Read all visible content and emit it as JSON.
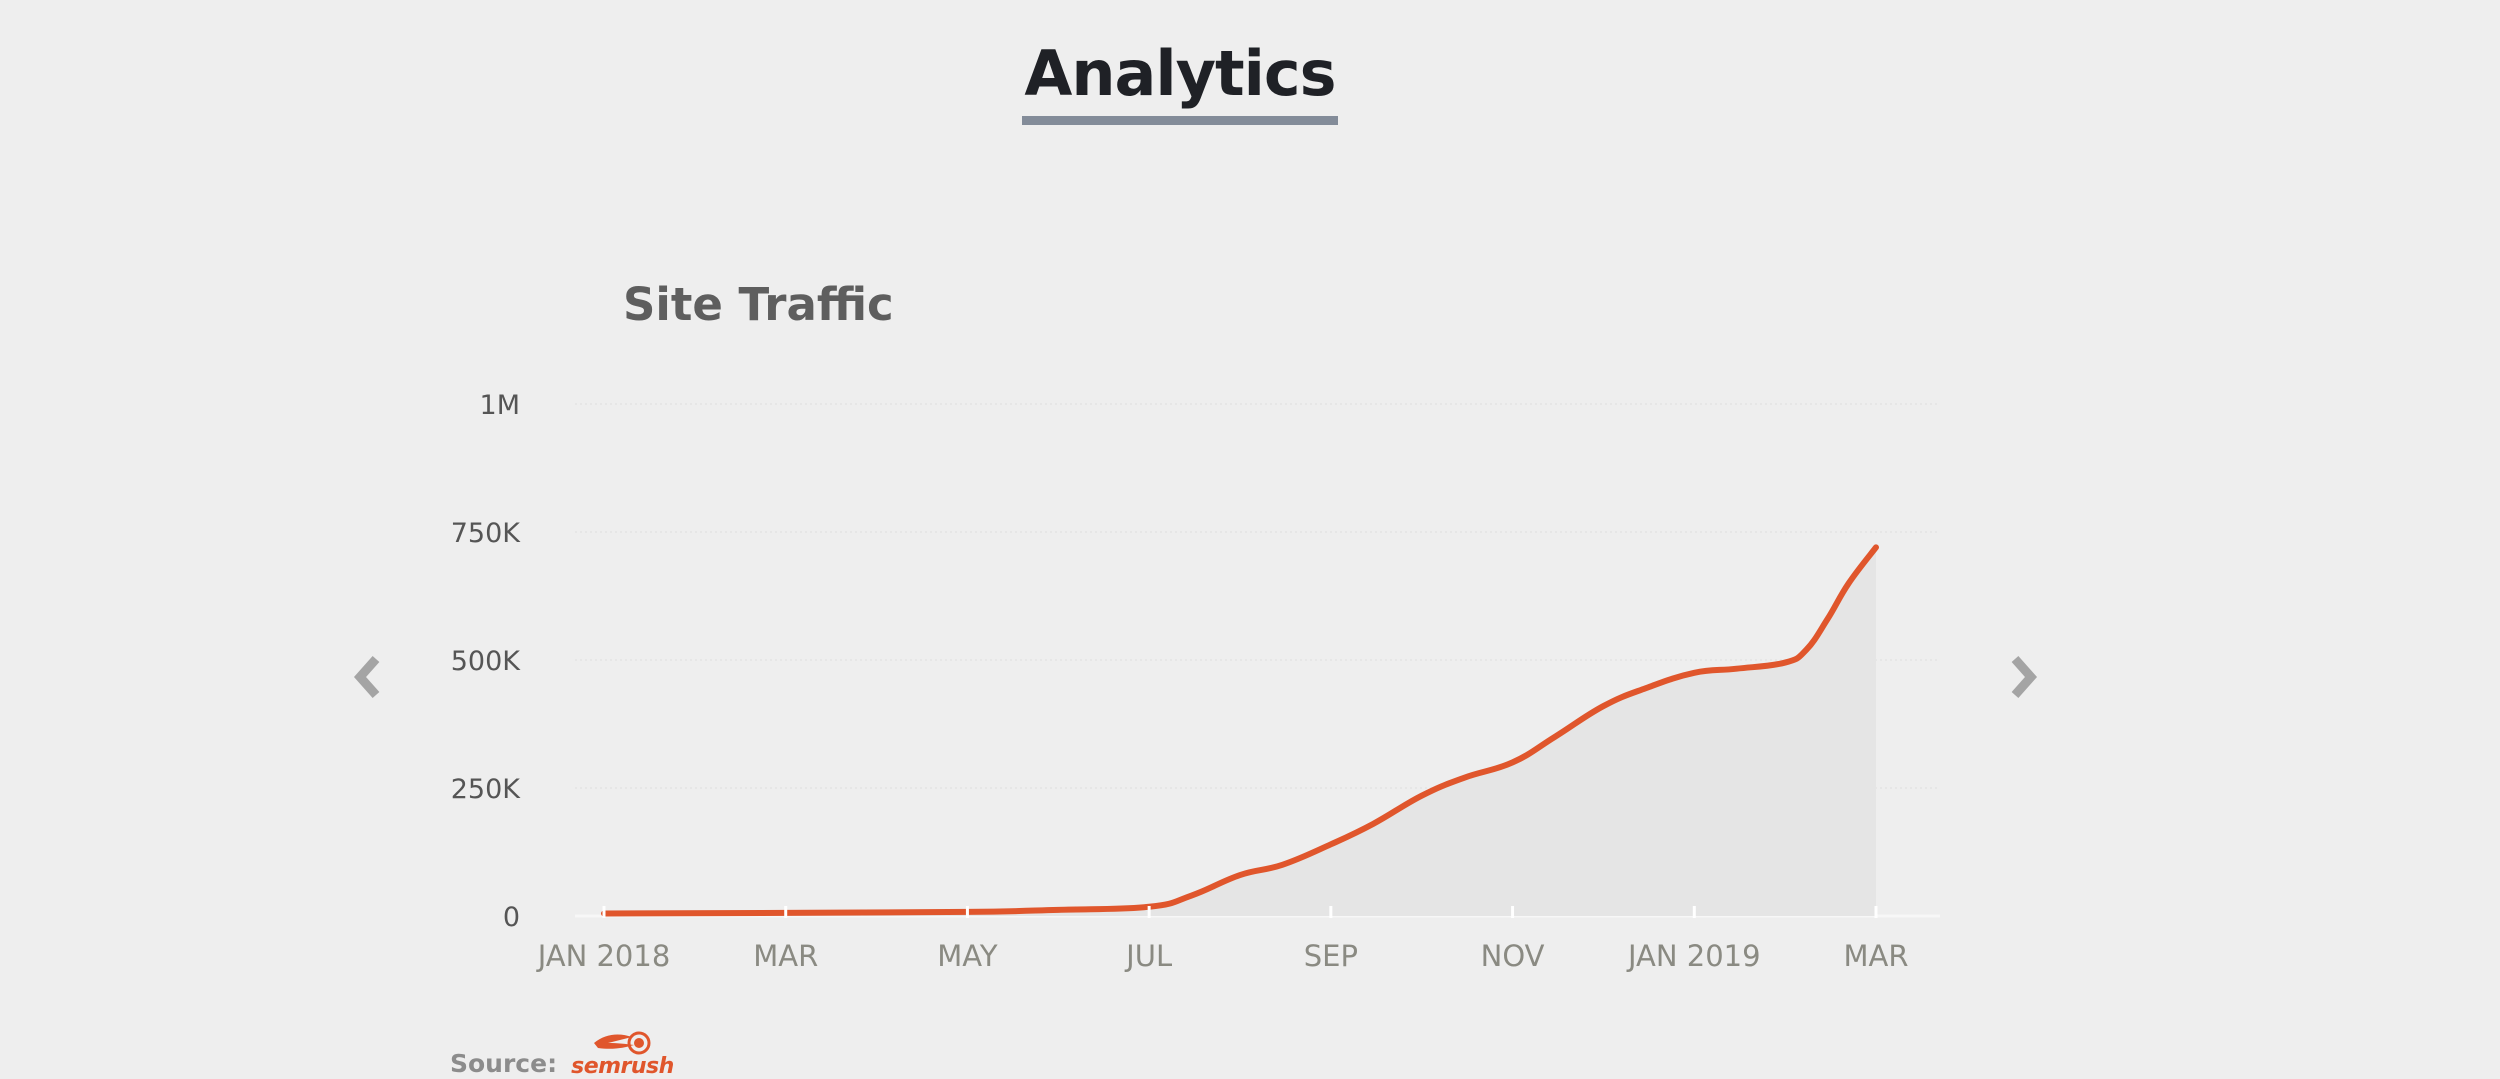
{
  "header": {
    "title": "Analytics"
  },
  "carousel": {
    "prev_icon": "chevron-left-icon",
    "next_icon": "chevron-right-icon"
  },
  "source": {
    "label": "Source:",
    "logo_text": "semrush"
  },
  "colors": {
    "line": "#e0562c",
    "area": "#e5e5e5",
    "background": "#eeeeee",
    "title_underline": "#838c99"
  },
  "chart_data": {
    "type": "area",
    "title": "Site Traffic",
    "xlabel": "",
    "ylabel": "",
    "y_ticks": [
      0,
      250000,
      500000,
      750000,
      1000000
    ],
    "y_tick_labels": [
      "0",
      "250K",
      "500K",
      "750K",
      "1M"
    ],
    "ylim": [
      0,
      1000000
    ],
    "x_ticks": [
      "2018-01",
      "2018-03",
      "2018-05",
      "2018-07",
      "2018-09",
      "2018-11",
      "2019-01",
      "2019-03"
    ],
    "x_tick_labels": [
      "JAN 2018",
      "MAR",
      "MAY",
      "JUL",
      "SEP",
      "NOV",
      "JAN 2019",
      "MAR"
    ],
    "grid": true,
    "series": [
      {
        "values": [
          {
            "x": "2018-01-01",
            "y": 5000
          },
          {
            "x": "2018-03-01",
            "y": 6000
          },
          {
            "x": "2018-05-01",
            "y": 8000
          },
          {
            "x": "2018-06-01",
            "y": 12000
          },
          {
            "x": "2018-07-01",
            "y": 18000
          },
          {
            "x": "2018-07-15",
            "y": 40000
          },
          {
            "x": "2018-08-01",
            "y": 80000
          },
          {
            "x": "2018-08-15",
            "y": 100000
          },
          {
            "x": "2018-09-01",
            "y": 140000
          },
          {
            "x": "2018-09-15",
            "y": 180000
          },
          {
            "x": "2018-10-01",
            "y": 235000
          },
          {
            "x": "2018-10-15",
            "y": 270000
          },
          {
            "x": "2018-11-01",
            "y": 300000
          },
          {
            "x": "2018-11-15",
            "y": 350000
          },
          {
            "x": "2018-12-01",
            "y": 410000
          },
          {
            "x": "2018-12-15",
            "y": 445000
          },
          {
            "x": "2019-01-01",
            "y": 475000
          },
          {
            "x": "2019-01-15",
            "y": 483000
          },
          {
            "x": "2019-02-01",
            "y": 495000
          },
          {
            "x": "2019-02-08",
            "y": 520000
          },
          {
            "x": "2019-02-15",
            "y": 580000
          },
          {
            "x": "2019-02-22",
            "y": 650000
          },
          {
            "x": "2019-03-01",
            "y": 720000
          }
        ]
      }
    ]
  }
}
